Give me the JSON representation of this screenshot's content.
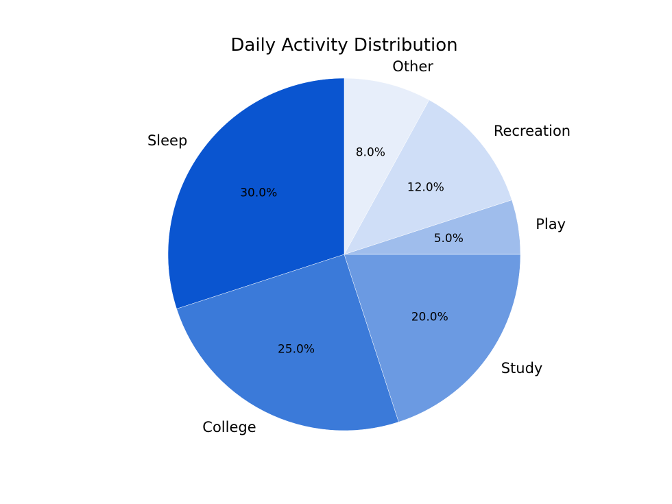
{
  "chart_data": {
    "type": "pie",
    "title": "Daily Activity Distribution",
    "categories": [
      "Play",
      "Recreation",
      "Other",
      "Sleep",
      "College",
      "Study"
    ],
    "values": [
      5.0,
      12.0,
      8.0,
      30.0,
      25.0,
      20.0
    ],
    "percent_labels": [
      "5.0%",
      "12.0%",
      "8.0%",
      "30.0%",
      "25.0%",
      "20.0%"
    ],
    "colors": [
      "#9fbdec",
      "#cfdef7",
      "#e7eefa",
      "#0a55d0",
      "#3b7ad9",
      "#6b9ae2"
    ],
    "start_angle_deg": 0,
    "direction": "counterclockwise",
    "legend": "none"
  }
}
